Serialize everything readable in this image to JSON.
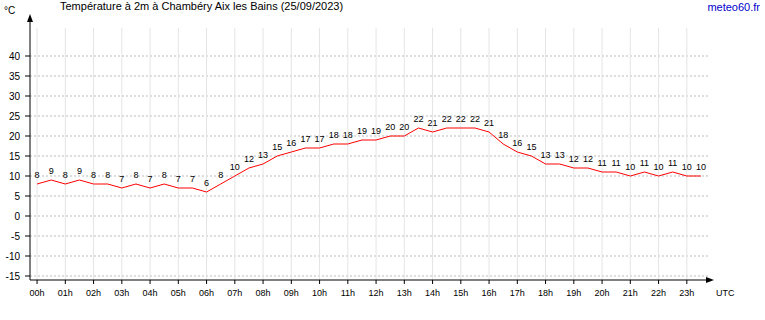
{
  "chart_data": {
    "type": "line",
    "title": "Température à 2m à Chambéry Aix les Bains (25/09/2023)",
    "source": "meteo60.fr",
    "y_label": "°C",
    "x_label": "UTC",
    "x": [
      0,
      0.5,
      1,
      1.5,
      2,
      2.5,
      3,
      3.5,
      4,
      4.5,
      5,
      5.5,
      6,
      6.5,
      7,
      7.5,
      8,
      8.5,
      9,
      9.5,
      10,
      10.5,
      11,
      11.5,
      12,
      12.5,
      13,
      13.5,
      14,
      14.5,
      15,
      15.5,
      16,
      16.5,
      17,
      17.5,
      18,
      18.5,
      19,
      19.5,
      20,
      20.5,
      21,
      21.5,
      22,
      22.5,
      23,
      23.5
    ],
    "values": [
      8,
      9,
      8,
      9,
      8,
      8,
      7,
      8,
      7,
      8,
      7,
      7,
      6,
      8,
      10,
      12,
      13,
      15,
      16,
      17,
      17,
      18,
      18,
      19,
      19,
      20,
      20,
      22,
      21,
      22,
      22,
      22,
      21,
      18,
      16,
      15,
      13,
      13,
      12,
      12,
      11,
      11,
      10,
      11,
      10,
      11,
      10,
      10
    ],
    "color": "#ff0000",
    "data_labels": true,
    "grid": true,
    "xlim": [
      -0.25,
      23.75
    ],
    "ylim": [
      -16,
      47
    ],
    "xticks": [
      {
        "value": 0,
        "label": "00h"
      },
      {
        "value": 1,
        "label": "01h"
      },
      {
        "value": 2,
        "label": "02h"
      },
      {
        "value": 3,
        "label": "03h"
      },
      {
        "value": 4,
        "label": "04h"
      },
      {
        "value": 5,
        "label": "05h"
      },
      {
        "value": 6,
        "label": "06h"
      },
      {
        "value": 7,
        "label": "07h"
      },
      {
        "value": 8,
        "label": "08h"
      },
      {
        "value": 9,
        "label": "09h"
      },
      {
        "value": 10,
        "label": "10h"
      },
      {
        "value": 11,
        "label": "11h"
      },
      {
        "value": 12,
        "label": "12h"
      },
      {
        "value": 13,
        "label": "13h"
      },
      {
        "value": 14,
        "label": "14h"
      },
      {
        "value": 15,
        "label": "15h"
      },
      {
        "value": 16,
        "label": "16h"
      },
      {
        "value": 17,
        "label": "17h"
      },
      {
        "value": 18,
        "label": "18h"
      },
      {
        "value": 19,
        "label": "19h"
      },
      {
        "value": 20,
        "label": "20h"
      },
      {
        "value": 21,
        "label": "21h"
      },
      {
        "value": 22,
        "label": "22h"
      },
      {
        "value": 23,
        "label": "23h"
      }
    ],
    "yticks": [
      -15,
      -10,
      -5,
      0,
      5,
      10,
      15,
      20,
      25,
      30,
      35,
      40
    ]
  }
}
